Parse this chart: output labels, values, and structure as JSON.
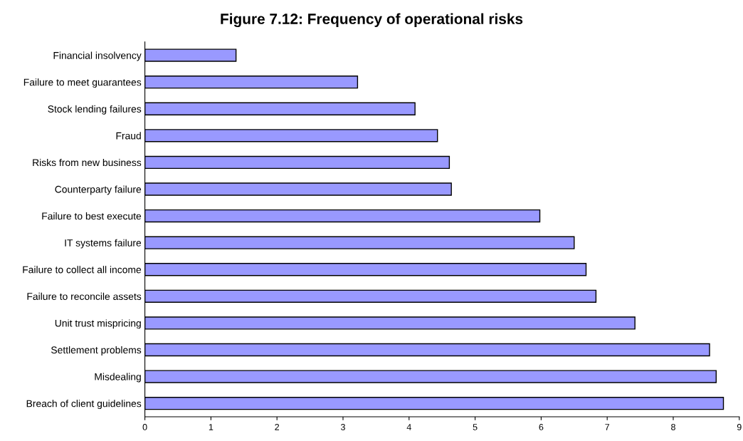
{
  "chart_data": {
    "type": "bar",
    "orientation": "horizontal",
    "title": "Figure 7.12: Frequency of operational risks",
    "categories": [
      "Financial insolvency",
      "Failure to meet guarantees",
      "Stock lending failures",
      "Fraud",
      "Risks from new business",
      "Counterparty failure",
      "Failure to best execute",
      "IT systems failure",
      "Failure to collect all income",
      "Failure to reconcile assets",
      "Unit trust mispricing",
      "Settlement problems",
      "Misdealing",
      "Breach of client guidelines"
    ],
    "values": [
      1.38,
      3.22,
      4.09,
      4.43,
      4.61,
      4.64,
      5.98,
      6.5,
      6.68,
      6.83,
      7.42,
      8.55,
      8.65,
      8.76
    ],
    "color": "#9999ff",
    "xlim": [
      0,
      9
    ],
    "xticks": [
      0,
      1,
      2,
      3,
      4,
      5,
      6,
      7,
      8,
      9
    ],
    "grid": false
  }
}
